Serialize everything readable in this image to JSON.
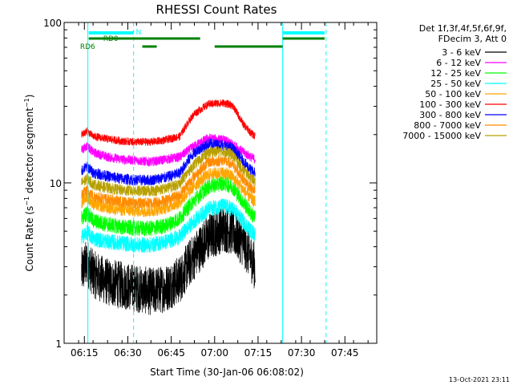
{
  "chart_data": {
    "type": "line",
    "title": "RHESSI Count Rates",
    "xlabel": "Start Time (30-Jan-06 06:08:02)",
    "ylabel_main": "Count Rate (s",
    "ylabel_sup": "−1",
    "ylabel_tail": " detector segment",
    "ylabel_sup2": "−1",
    "ylabel_end": ")",
    "yscale": "log",
    "ylim": [
      1,
      100
    ],
    "xlim_minutes": [
      368,
      1008
    ],
    "x_ticks": [
      {
        "t": 375,
        "label": "06:15"
      },
      {
        "t": 390,
        "label": "06:30"
      },
      {
        "t": 405,
        "label": "06:45"
      },
      {
        "t": 420,
        "label": "07:00"
      },
      {
        "t": 435,
        "label": "07:15"
      },
      {
        "t": 450,
        "label": "07:30"
      },
      {
        "t": 465,
        "label": "07:45"
      }
    ],
    "y_ticks": [
      {
        "v": 1,
        "label": "1"
      },
      {
        "v": 10,
        "label": "10"
      },
      {
        "v": 100,
        "label": "100"
      }
    ],
    "legend": {
      "header1": "Det 1f,3f,4f,5f,6f,9f,",
      "header2": "FDecim 3, Att 0",
      "placement": "right"
    },
    "series": [
      {
        "name": "3 - 6 keV",
        "color": "#000000",
        "points": [
          [
            6.0,
            2.8
          ],
          [
            8.0,
            3.2
          ],
          [
            10.0,
            2.7
          ],
          [
            15.0,
            2.4
          ],
          [
            20.0,
            2.3
          ],
          [
            25.0,
            2.2
          ],
          [
            30.0,
            2.1
          ],
          [
            35.0,
            2.2
          ],
          [
            40.0,
            2.5
          ],
          [
            45.0,
            3.5
          ],
          [
            50.0,
            4.6
          ],
          [
            55.0,
            5.2
          ],
          [
            58.0,
            5.0
          ],
          [
            62.0,
            4.2
          ],
          [
            64.5,
            3.4
          ],
          [
            66.0,
            3.0
          ]
        ]
      },
      {
        "name": "6 - 12 keV",
        "color": "#ff00ff",
        "points": [
          [
            6.0,
            16
          ],
          [
            8.0,
            17
          ],
          [
            10.0,
            15.5
          ],
          [
            15.0,
            14.5
          ],
          [
            20.0,
            14
          ],
          [
            25.0,
            13.8
          ],
          [
            30.0,
            13.5
          ],
          [
            35.0,
            14
          ],
          [
            40.0,
            14.5
          ],
          [
            45.0,
            17
          ],
          [
            50.0,
            19
          ],
          [
            55.0,
            18.5
          ],
          [
            58.0,
            17.5
          ],
          [
            62.0,
            15.5
          ],
          [
            64.5,
            14.5
          ],
          [
            66.0,
            14
          ]
        ]
      },
      {
        "name": "12 - 25 keV",
        "color": "#00ff00",
        "points": [
          [
            6.0,
            6.0
          ],
          [
            8.0,
            6.5
          ],
          [
            10.0,
            5.8
          ],
          [
            15.0,
            5.5
          ],
          [
            20.0,
            5.3
          ],
          [
            25.0,
            5.2
          ],
          [
            30.0,
            5.2
          ],
          [
            35.0,
            5.4
          ],
          [
            40.0,
            6.0
          ],
          [
            45.0,
            7.8
          ],
          [
            50.0,
            9.5
          ],
          [
            55.0,
            10.0
          ],
          [
            58.0,
            9.5
          ],
          [
            62.0,
            7.5
          ],
          [
            64.5,
            6.5
          ],
          [
            66.0,
            6.0
          ]
        ]
      },
      {
        "name": "25 - 50 keV",
        "color": "#00ffff",
        "points": [
          [
            6.0,
            4.6
          ],
          [
            8.0,
            4.9
          ],
          [
            10.0,
            4.5
          ],
          [
            15.0,
            4.3
          ],
          [
            20.0,
            4.2
          ],
          [
            25.0,
            4.1
          ],
          [
            30.0,
            4.1
          ],
          [
            35.0,
            4.3
          ],
          [
            40.0,
            4.6
          ],
          [
            45.0,
            5.8
          ],
          [
            50.0,
            6.9
          ],
          [
            55.0,
            7.2
          ],
          [
            58.0,
            6.9
          ],
          [
            62.0,
            5.7
          ],
          [
            64.5,
            5.0
          ],
          [
            66.0,
            4.8
          ]
        ]
      },
      {
        "name": "50 - 100 keV",
        "color": "#ffa500",
        "points": [
          [
            6.0,
            7.6
          ],
          [
            8.0,
            8.2
          ],
          [
            10.0,
            7.4
          ],
          [
            15.0,
            7.0
          ],
          [
            20.0,
            6.8
          ],
          [
            25.0,
            6.7
          ],
          [
            30.0,
            6.7
          ],
          [
            35.0,
            7.0
          ],
          [
            40.0,
            7.6
          ],
          [
            45.0,
            9.6
          ],
          [
            50.0,
            11.3
          ],
          [
            55.0,
            11.6
          ],
          [
            58.0,
            11.0
          ],
          [
            62.0,
            9.0
          ],
          [
            64.5,
            8.0
          ],
          [
            66.0,
            7.6
          ]
        ]
      },
      {
        "name": "100 - 300 keV",
        "color": "#ff0000",
        "points": [
          [
            6.0,
            20
          ],
          [
            8.0,
            21
          ],
          [
            10.0,
            19.5
          ],
          [
            15.0,
            18.8
          ],
          [
            20.0,
            18.2
          ],
          [
            25.0,
            18.0
          ],
          [
            30.0,
            18.0
          ],
          [
            35.0,
            18.5
          ],
          [
            40.0,
            19.5
          ],
          [
            45.0,
            27
          ],
          [
            50.0,
            31
          ],
          [
            55.0,
            31.5
          ],
          [
            58.0,
            30.5
          ],
          [
            62.0,
            23
          ],
          [
            64.5,
            20.5
          ],
          [
            66.0,
            19.5
          ]
        ]
      },
      {
        "name": "300 - 800 keV",
        "color": "#0000ff",
        "points": [
          [
            6.0,
            12.0
          ],
          [
            8.0,
            12.6
          ],
          [
            10.0,
            11.6
          ],
          [
            15.0,
            11.0
          ],
          [
            20.0,
            10.6
          ],
          [
            25.0,
            10.4
          ],
          [
            30.0,
            10.4
          ],
          [
            35.0,
            10.8
          ],
          [
            40.0,
            11.5
          ],
          [
            45.0,
            15.5
          ],
          [
            50.0,
            17.5
          ],
          [
            55.0,
            17.2
          ],
          [
            58.0,
            16.5
          ],
          [
            62.0,
            13.5
          ],
          [
            64.5,
            12.0
          ],
          [
            66.0,
            11.5
          ]
        ]
      },
      {
        "name": "800 - 7000 keV",
        "color": "#ff8c00",
        "points": [
          [
            6.0,
            8.5
          ],
          [
            8.0,
            9.0
          ],
          [
            10.0,
            8.3
          ],
          [
            15.0,
            7.9
          ],
          [
            20.0,
            7.6
          ],
          [
            25.0,
            7.5
          ],
          [
            30.0,
            7.5
          ],
          [
            35.0,
            7.8
          ],
          [
            40.0,
            8.4
          ],
          [
            45.0,
            11.0
          ],
          [
            50.0,
            13.5
          ],
          [
            55.0,
            13.8
          ],
          [
            58.0,
            13.0
          ],
          [
            62.0,
            10.5
          ],
          [
            64.5,
            9.3
          ],
          [
            66.0,
            8.8
          ]
        ]
      },
      {
        "name": "7000 - 15000 keV",
        "color": "#b8a000",
        "points": [
          [
            6.0,
            10.0
          ],
          [
            8.0,
            10.6
          ],
          [
            10.0,
            9.8
          ],
          [
            15.0,
            9.3
          ],
          [
            20.0,
            9.0
          ],
          [
            25.0,
            8.9
          ],
          [
            30.0,
            8.9
          ],
          [
            35.0,
            9.2
          ],
          [
            40.0,
            9.9
          ],
          [
            45.0,
            13.0
          ],
          [
            50.0,
            15.5
          ],
          [
            55.0,
            15.8
          ],
          [
            58.0,
            15.0
          ],
          [
            62.0,
            12.0
          ],
          [
            64.5,
            10.8
          ],
          [
            66.0,
            10.2
          ]
        ]
      }
    ],
    "markers": [
      {
        "name": "N",
        "label": "N",
        "color": "#00ffff",
        "segments": [
          [
            8.5,
            24.0
          ],
          [
            75.5,
            90.0
          ]
        ],
        "y": 83
      },
      {
        "name": "RD0",
        "label": "RD0",
        "color": "#008000",
        "segments": [
          [
            8.5,
            47.0
          ],
          [
            75.5,
            90.0
          ]
        ],
        "y": 77
      },
      {
        "name": "RD6",
        "label": "RD6",
        "color": "#008000",
        "segments": [
          [
            27.0,
            32.0
          ],
          [
            52.0,
            75.5
          ]
        ],
        "y": 68
      }
    ],
    "vlines": [
      {
        "t": 8.2,
        "style": "solid",
        "color": "#00ffff"
      },
      {
        "t": 24.0,
        "style": "dashed",
        "color": "#00ffff"
      },
      {
        "t": 75.5,
        "style": "solid",
        "color": "#00ffff"
      },
      {
        "t": 90.5,
        "style": "dashed",
        "color": "#00ffff"
      }
    ],
    "footer_timestamp": "13-Oct-2021 23:11"
  }
}
